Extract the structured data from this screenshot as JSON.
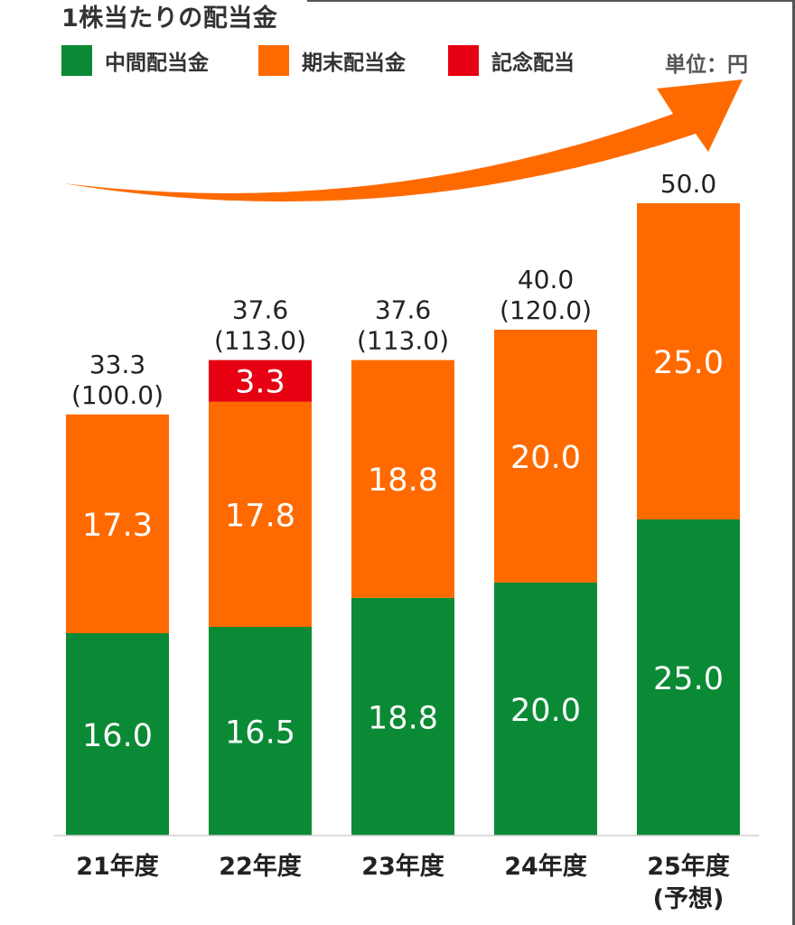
{
  "title": "1株当たりの配当金",
  "unit": "単位：円",
  "colors": {
    "interim": "#0b8a35",
    "yearend": "#ff6a00",
    "commemorative": "#e60012",
    "text": "#222222",
    "arrow": "#ff6a00"
  },
  "legend": [
    {
      "label": "中間配当金",
      "color": "#0b8a35"
    },
    {
      "label": "期末配当金",
      "color": "#ff6a00"
    },
    {
      "label": "記念配当",
      "color": "#e60012"
    }
  ],
  "chart_data": {
    "type": "bar",
    "stacked": true,
    "title": "1株当たりの配当金",
    "unit": "単位：円",
    "categories": [
      "21年度",
      "22年度",
      "23年度",
      "24年度",
      "25年度"
    ],
    "category_sublabels": [
      "",
      "",
      "",
      "",
      "(予想)"
    ],
    "series": [
      {
        "name": "中間配当金",
        "color": "#0b8a35",
        "values": [
          16.0,
          16.5,
          18.8,
          20.0,
          25.0
        ]
      },
      {
        "name": "期末配当金",
        "color": "#ff6a00",
        "values": [
          17.3,
          17.8,
          18.8,
          20.0,
          25.0
        ]
      },
      {
        "name": "記念配当",
        "color": "#e60012",
        "values": [
          0,
          3.3,
          0,
          0,
          0
        ]
      }
    ],
    "value_labels": [
      [
        "16.0",
        "16.5",
        "18.8",
        "20.0",
        "25.0"
      ],
      [
        "17.3",
        "17.8",
        "18.8",
        "20.0",
        "25.0"
      ],
      [
        "",
        "3.3",
        "",
        "",
        ""
      ]
    ],
    "totals": [
      "33.3",
      "37.6",
      "37.6",
      "40.0",
      "50.0"
    ],
    "totals_sub": [
      "(100.0)",
      "(113.0)",
      "(113.0)",
      "(120.0)",
      ""
    ],
    "ylim": [
      0,
      50
    ],
    "grid": false,
    "legend_position": "top"
  }
}
